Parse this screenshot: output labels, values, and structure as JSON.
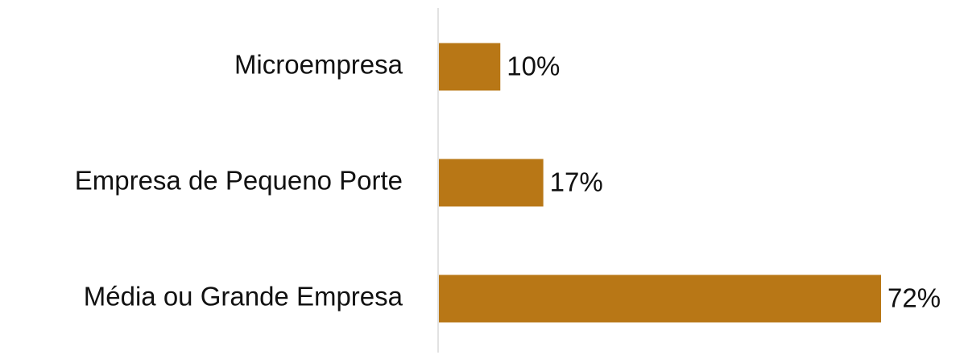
{
  "chart_data": {
    "type": "bar",
    "orientation": "horizontal",
    "categories": [
      "Microempresa",
      "Empresa de Pequeno Porte",
      "Média ou Grande Empresa"
    ],
    "values": [
      10,
      17,
      72
    ],
    "value_labels": [
      "10%",
      "17%",
      "72%"
    ],
    "color": "#b87716"
  }
}
